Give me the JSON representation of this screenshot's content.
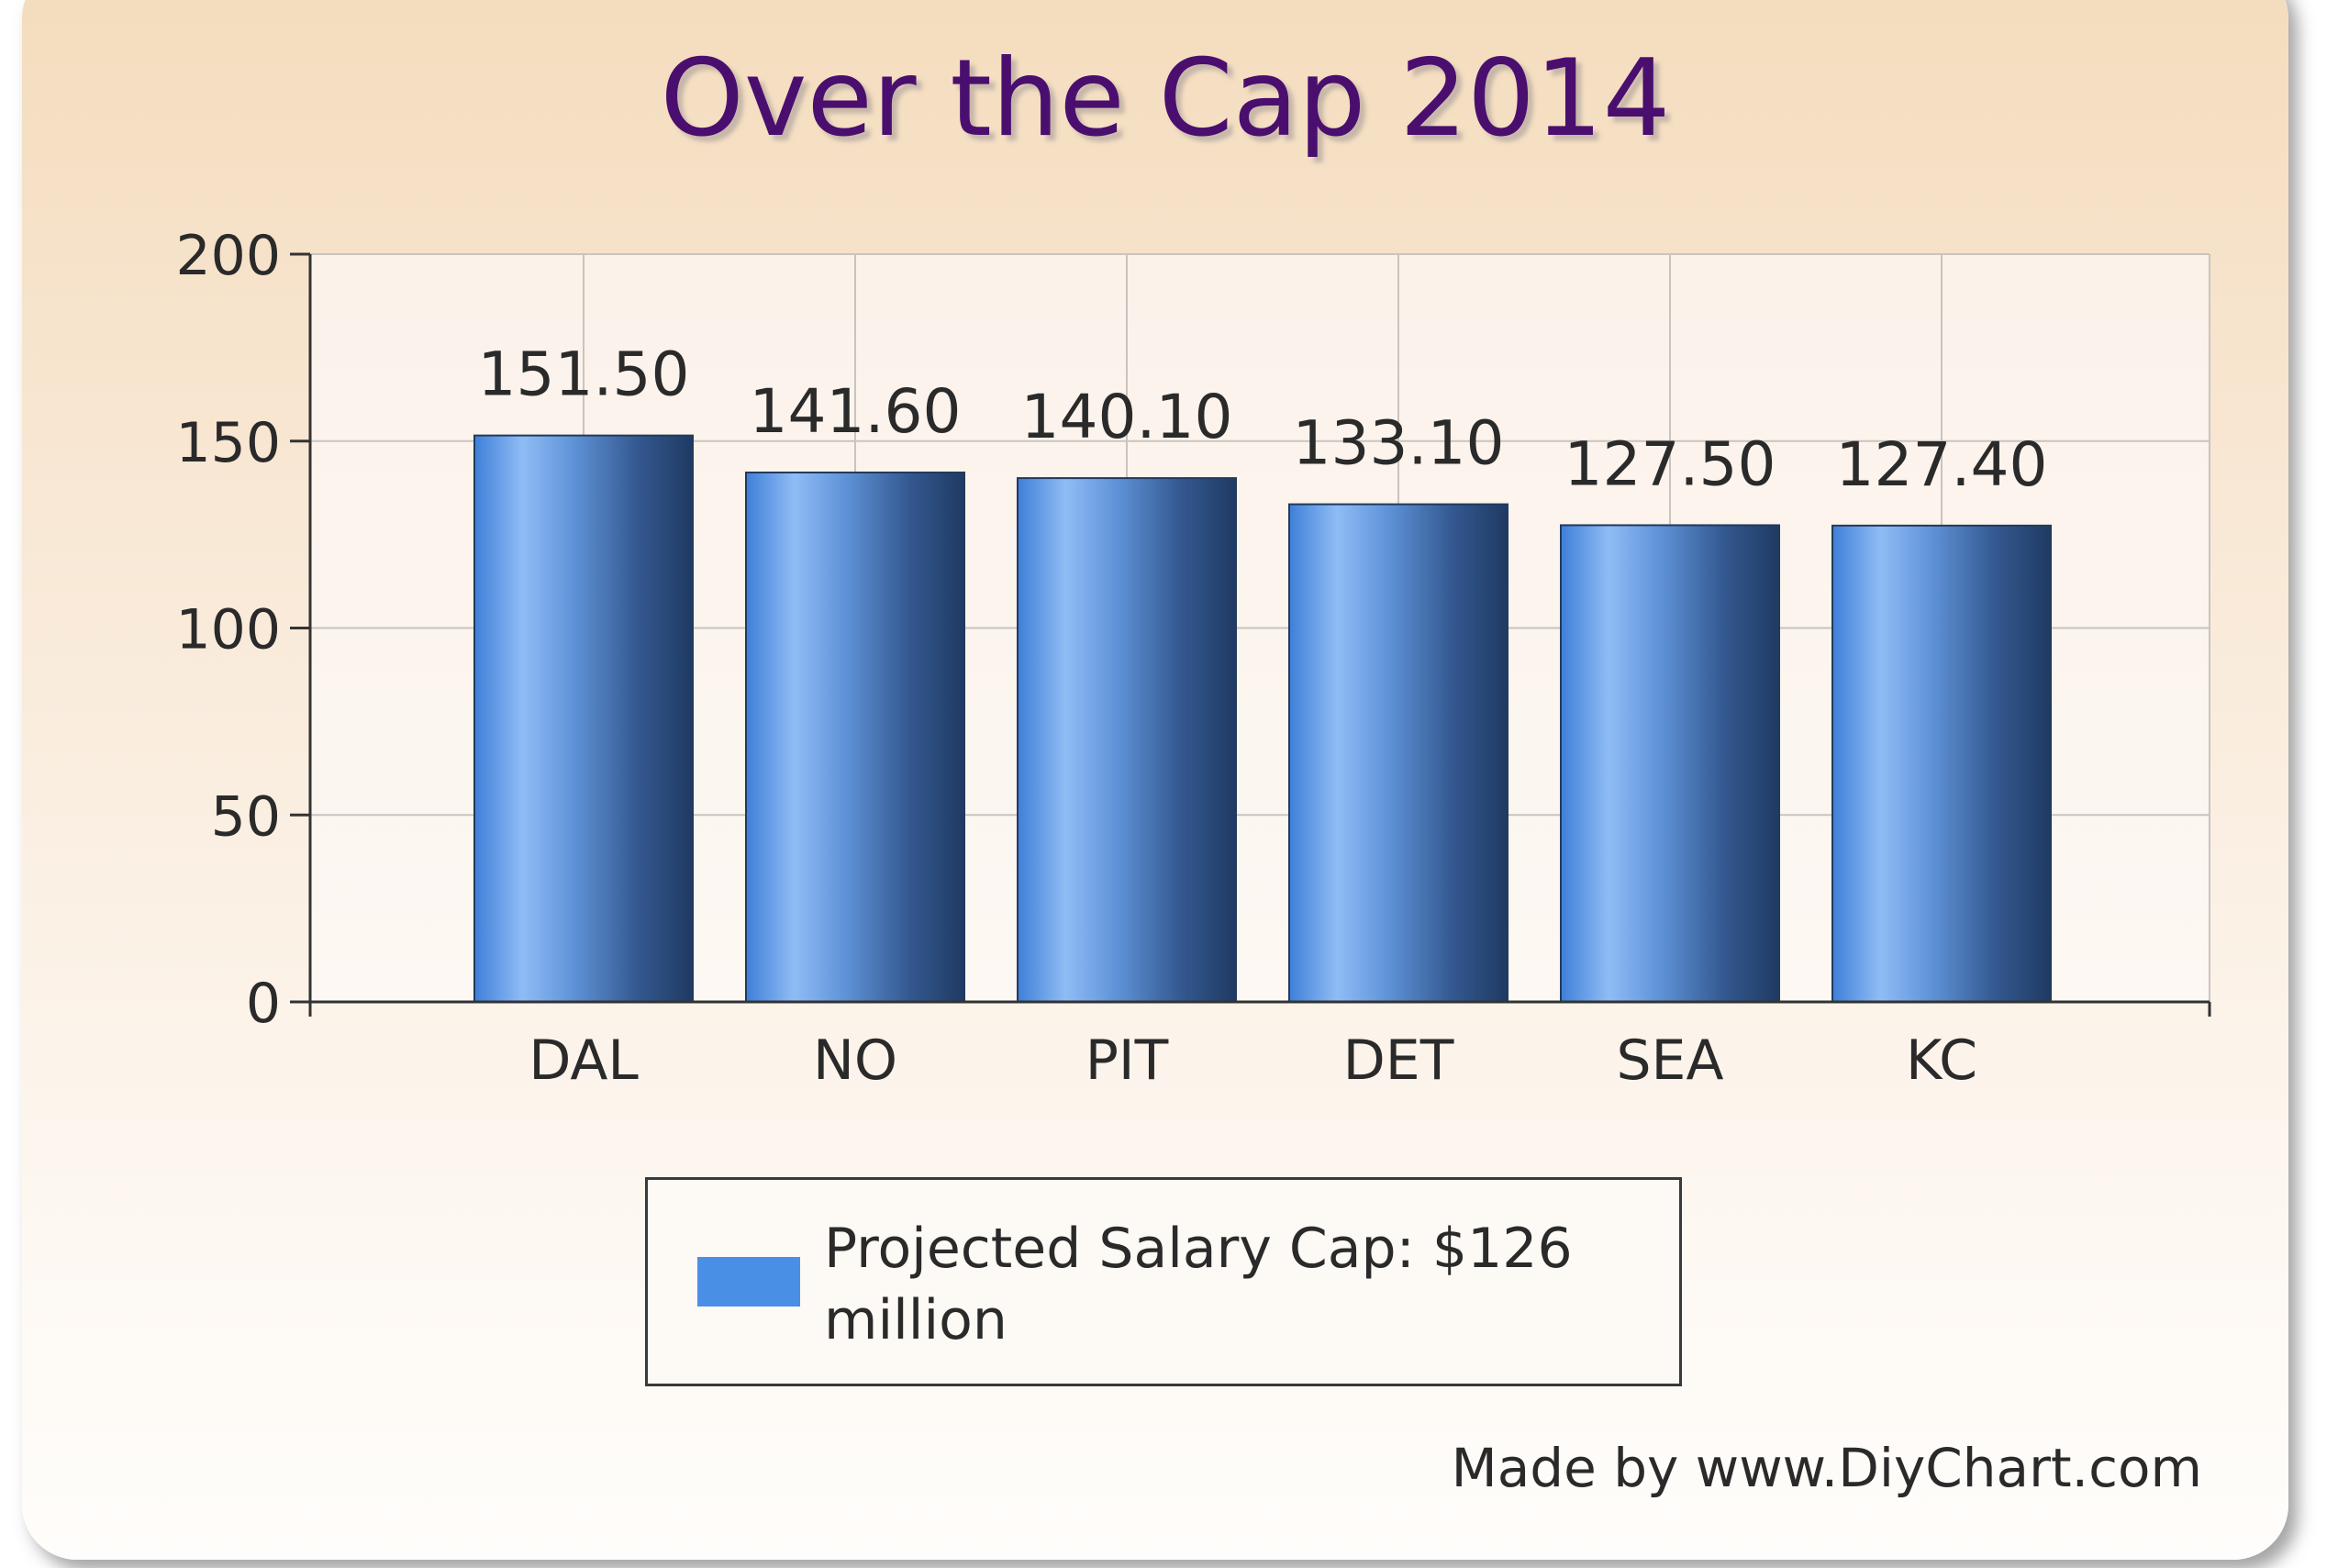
{
  "chart_data": {
    "type": "bar",
    "title": "Over the Cap 2014",
    "categories": [
      "DAL",
      "NO",
      "PIT",
      "DET",
      "SEA",
      "KC"
    ],
    "series": [
      {
        "name": "Projected Salary Cap: $126 million",
        "values": [
          151.5,
          141.6,
          140.1,
          133.1,
          127.5,
          127.4
        ],
        "color": "#4a8fe6"
      }
    ],
    "data_labels": [
      "151.50",
      "141.60",
      "140.10",
      "133.10",
      "127.50",
      "127.40"
    ],
    "y_ticks": [
      "0",
      "50",
      "100",
      "150",
      "200"
    ],
    "ylim": [
      0,
      200
    ],
    "xlabel": "",
    "ylabel": "",
    "grid": true,
    "legend": "bottom"
  },
  "credit": "Made by www.DiyChart.com"
}
